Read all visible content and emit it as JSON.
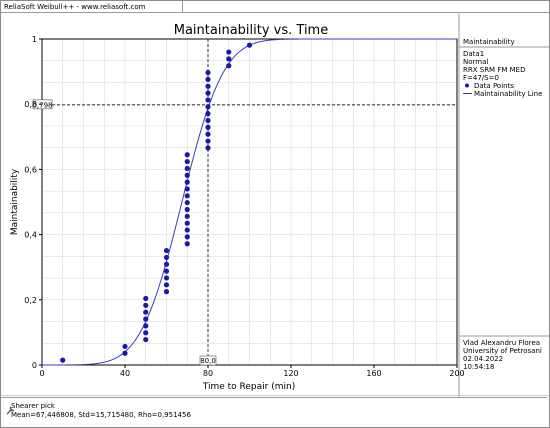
{
  "header": {
    "title": "ReliaSoft Weibull++ - www.reliasoft.com"
  },
  "legend": {
    "title": "Maintainability",
    "lines": [
      "Data1",
      "Normal",
      "RRX SRM FM MED",
      "F=47/S=0"
    ],
    "items": [
      "Data Points",
      "Maintainability Line"
    ]
  },
  "signature": {
    "lines": [
      "Vlad Alexandru Florea",
      "University of Petrosani",
      "02.04.2022",
      "10:54:18"
    ]
  },
  "footer": {
    "name": "Shearer pick",
    "params": "Mean=67,446808, Std=15,715480, Rho=0,951456"
  },
  "chart_data": {
    "type": "scatter",
    "title": "Maintainability vs. Time",
    "xlabel": "Time to Repair (min)",
    "ylabel": "Maintainability",
    "xlim": [
      0,
      200
    ],
    "ylim": [
      0,
      1
    ],
    "x_ticks": [
      "0",
      "40",
      "80",
      "120",
      "160",
      "200"
    ],
    "y_ticks": [
      "0",
      "0,2",
      "0,4",
      "0,6",
      "0,8",
      "1"
    ],
    "grid": true,
    "legend_position": "right",
    "crosshair": {
      "x": 80,
      "y": 0.798,
      "x_label": "80,0",
      "y_label": "0,798"
    },
    "colors": {
      "points": "#1a1aa6",
      "line": "#3a3ac0",
      "crosshair": "#333333"
    },
    "line": {
      "name": "Maintainability Line",
      "mean": 67.446808,
      "std": 15.71548
    },
    "series": [
      {
        "name": "Data Points",
        "points": [
          [
            10,
            0.015
          ],
          [
            40,
            0.036
          ],
          [
            40,
            0.057
          ],
          [
            50,
            0.078
          ],
          [
            50,
            0.099
          ],
          [
            50,
            0.12
          ],
          [
            50,
            0.141
          ],
          [
            50,
            0.162
          ],
          [
            50,
            0.183
          ],
          [
            50,
            0.204
          ],
          [
            60,
            0.225
          ],
          [
            60,
            0.246
          ],
          [
            60,
            0.267
          ],
          [
            60,
            0.288
          ],
          [
            60,
            0.309
          ],
          [
            60,
            0.33
          ],
          [
            60,
            0.351
          ],
          [
            70,
            0.372
          ],
          [
            70,
            0.393
          ],
          [
            70,
            0.414
          ],
          [
            70,
            0.435
          ],
          [
            70,
            0.456
          ],
          [
            70,
            0.477
          ],
          [
            70,
            0.498
          ],
          [
            70,
            0.519
          ],
          [
            70,
            0.54
          ],
          [
            70,
            0.561
          ],
          [
            70,
            0.582
          ],
          [
            70,
            0.603
          ],
          [
            70,
            0.624
          ],
          [
            70,
            0.645
          ],
          [
            80,
            0.666
          ],
          [
            80,
            0.687
          ],
          [
            80,
            0.708
          ],
          [
            80,
            0.729
          ],
          [
            80,
            0.75
          ],
          [
            80,
            0.771
          ],
          [
            80,
            0.792
          ],
          [
            80,
            0.813
          ],
          [
            80,
            0.834
          ],
          [
            80,
            0.855
          ],
          [
            80,
            0.876
          ],
          [
            80,
            0.897
          ],
          [
            90,
            0.918
          ],
          [
            90,
            0.939
          ],
          [
            90,
            0.96
          ],
          [
            100,
            0.981
          ]
        ]
      }
    ]
  }
}
